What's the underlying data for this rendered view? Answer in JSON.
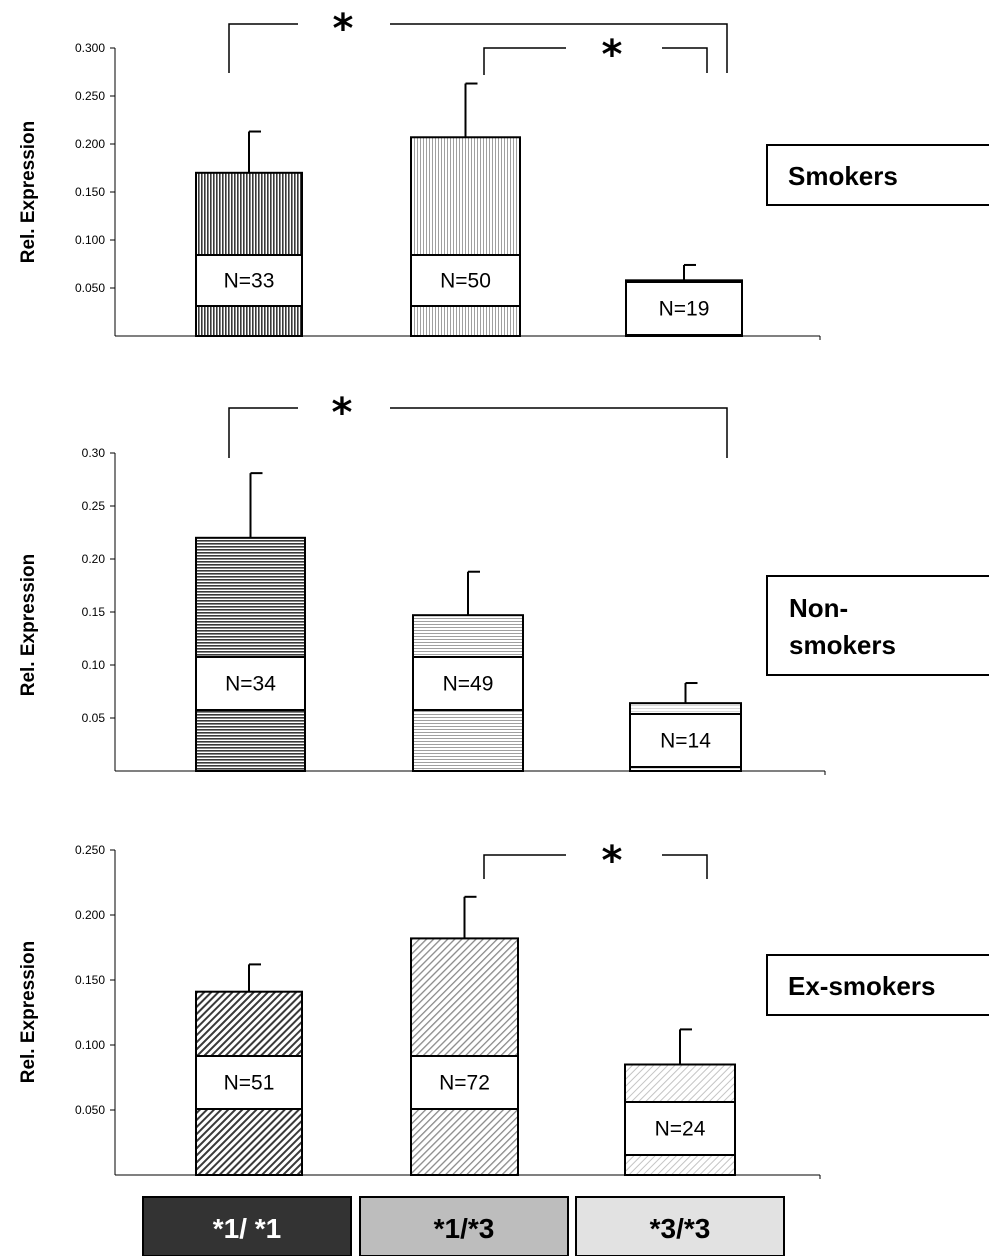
{
  "chart_data": [
    {
      "type": "bar",
      "panel_label": [
        "Smokers"
      ],
      "ylabel": "Rel. Expression",
      "categories": [
        "*1/ *1",
        "*1/*3",
        "*3/*3"
      ],
      "values": [
        0.17,
        0.207,
        0.058
      ],
      "error": [
        0.043,
        0.056,
        0.016
      ],
      "n_labels": [
        "N=33",
        "N=50",
        "N=19"
      ],
      "ylim": [
        0,
        0.3
      ],
      "yticks": [
        "0.300",
        "0.250",
        "0.200",
        "0.150",
        "0.100",
        "0.050"
      ],
      "yticks_values": [
        0.3,
        0.25,
        0.2,
        0.15,
        0.1,
        0.05
      ],
      "significance": [
        {
          "from": 0,
          "to": 2,
          "label": "*"
        },
        {
          "from": 1,
          "to": 2,
          "label": "*"
        }
      ],
      "pattern": "vertical",
      "grid": false
    },
    {
      "type": "bar",
      "panel_label": [
        "Non-",
        "smokers"
      ],
      "ylabel": "Rel. Expression",
      "categories": [
        "*1/ *1",
        "*1/*3",
        "*3/*3"
      ],
      "values": [
        0.22,
        0.147,
        0.064
      ],
      "error": [
        0.061,
        0.041,
        0.019
      ],
      "n_labels": [
        "N=34",
        "N=49",
        "N=14"
      ],
      "ylim": [
        0,
        0.3
      ],
      "yticks": [
        "0.30",
        "0.25",
        "0.20",
        "0.15",
        "0.10",
        "0.05"
      ],
      "yticks_values": [
        0.3,
        0.25,
        0.2,
        0.15,
        0.1,
        0.05
      ],
      "significance": [
        {
          "from": 0,
          "to": 2,
          "label": "*"
        }
      ],
      "pattern": "horizontal",
      "grid": false
    },
    {
      "type": "bar",
      "panel_label": [
        "Ex-smokers"
      ],
      "ylabel": "Rel. Expression",
      "categories": [
        "*1/ *1",
        "*1/*3",
        "*3/*3"
      ],
      "values": [
        0.141,
        0.182,
        0.085
      ],
      "error": [
        0.021,
        0.032,
        0.027
      ],
      "n_labels": [
        "N=51",
        "N=72",
        "N=24"
      ],
      "ylim": [
        0,
        0.25
      ],
      "yticks": [
        "0.250",
        "0.200",
        "0.150",
        "0.100",
        "0.050"
      ],
      "yticks_values": [
        0.25,
        0.2,
        0.15,
        0.1,
        0.05
      ],
      "significance": [
        {
          "from": 1,
          "to": 2,
          "label": "*"
        }
      ],
      "pattern": "diagonal",
      "grid": false
    }
  ],
  "legend": {
    "items": [
      {
        "label": "*1/ *1",
        "fill": "#333333",
        "text_color": "#ffffff"
      },
      {
        "label": "*1/*3",
        "fill": "#bdbdbd",
        "text_color": "#000000"
      },
      {
        "label": "*3/*3",
        "fill": "#e2e2e2",
        "text_color": "#000000"
      }
    ]
  },
  "colors": {
    "bar_dark": "#3a3a3a",
    "bar_mid": "#9a9a9a",
    "bar_light": "#c8c8c8"
  }
}
